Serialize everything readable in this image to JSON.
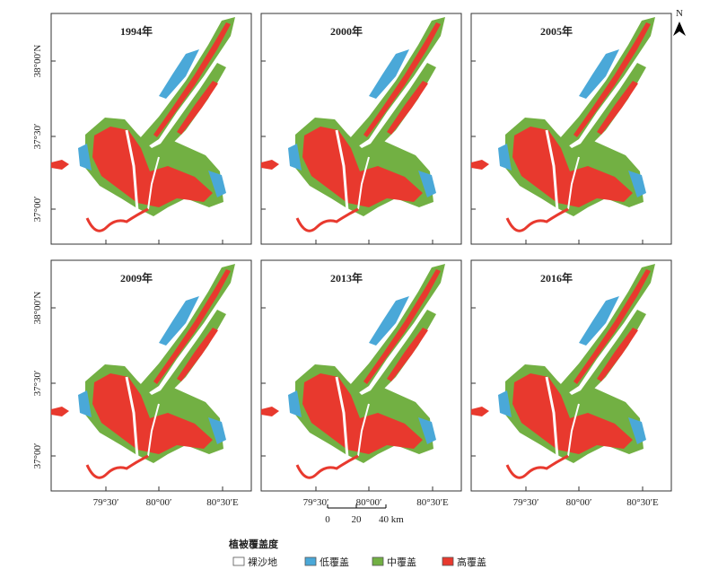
{
  "panels": [
    {
      "label": "1994年"
    },
    {
      "label": "2000年"
    },
    {
      "label": "2005年"
    },
    {
      "label": "2009年"
    },
    {
      "label": "2013年"
    },
    {
      "label": "2016年"
    }
  ],
  "y_axis_labels": [
    "38°00′N",
    "37°30′",
    "37°00′"
  ],
  "x_axis_labels": [
    "79°30′",
    "80°00′",
    "80°30′E"
  ],
  "north": "N",
  "scale_bar": {
    "labels": [
      "0",
      "20",
      "40 km"
    ]
  },
  "legend": {
    "title": "植被覆盖度",
    "items": [
      {
        "label": "裸沙地",
        "color": "#ffffff"
      },
      {
        "label": "低覆盖",
        "color": "#4aa8d8"
      },
      {
        "label": "中覆盖",
        "color": "#72b043"
      },
      {
        "label": "高覆盖",
        "color": "#e8392e"
      }
    ]
  }
}
